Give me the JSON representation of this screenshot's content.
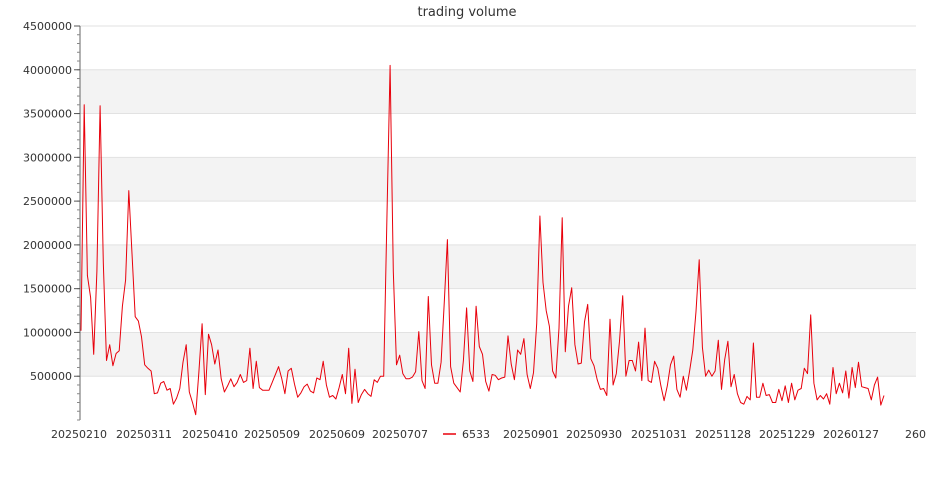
{
  "chart_data": {
    "type": "line",
    "title": "trading volume",
    "xlabel": "",
    "ylabel": "",
    "ylim": [
      0,
      4500000
    ],
    "y_ticks": [
      "500000",
      "1000000",
      "1500000",
      "2000000",
      "2500000",
      "3000000",
      "3500000",
      "4000000",
      "4500000"
    ],
    "x_tick_labels": [
      "20250210",
      "20250311",
      "20250410",
      "20250509",
      "20250609",
      "20250707",
      "20250901",
      "20250930",
      "20251031",
      "20251128",
      "20251229",
      "20260127",
      "260"
    ],
    "legend_placement": "bottom",
    "grid": "alternating horizontal bands",
    "series": [
      {
        "name": "6533",
        "color": "#e8000b",
        "values": [
          1020000,
          3600000,
          1650000,
          1400000,
          750000,
          1700000,
          3590000,
          1800000,
          680000,
          860000,
          620000,
          760000,
          790000,
          1300000,
          1600000,
          2620000,
          1900000,
          1180000,
          1130000,
          950000,
          630000,
          590000,
          560000,
          300000,
          310000,
          420000,
          440000,
          340000,
          360000,
          180000,
          250000,
          360000,
          660000,
          860000,
          320000,
          200000,
          60000,
          550000,
          1100000,
          290000,
          980000,
          860000,
          640000,
          800000,
          470000,
          320000,
          390000,
          470000,
          380000,
          430000,
          520000,
          430000,
          450000,
          820000,
          360000,
          670000,
          370000,
          340000,
          340000,
          340000,
          430000,
          520000,
          610000,
          470000,
          300000,
          560000,
          590000,
          410000,
          260000,
          310000,
          380000,
          410000,
          330000,
          310000,
          480000,
          460000,
          670000,
          400000,
          260000,
          280000,
          240000,
          370000,
          520000,
          300000,
          820000,
          190000,
          580000,
          200000,
          290000,
          350000,
          300000,
          270000,
          460000,
          430000,
          500000,
          500000,
          2300000,
          4050000,
          1700000,
          630000,
          740000,
          530000,
          470000,
          470000,
          490000,
          550000,
          1010000,
          450000,
          360000,
          1410000,
          630000,
          420000,
          420000,
          660000,
          1350000,
          2060000,
          610000,
          420000,
          370000,
          320000,
          680000,
          1280000,
          560000,
          440000,
          1300000,
          840000,
          750000,
          440000,
          330000,
          520000,
          510000,
          460000,
          480000,
          490000,
          960000,
          640000,
          460000,
          800000,
          750000,
          930000,
          520000,
          360000,
          540000,
          1100000,
          2330000,
          1570000,
          1250000,
          1070000,
          560000,
          480000,
          1050000,
          2310000,
          780000,
          1300000,
          1510000,
          860000,
          640000,
          650000,
          1120000,
          1320000,
          700000,
          620000,
          460000,
          350000,
          360000,
          280000,
          1150000,
          400000,
          530000,
          900000,
          1420000,
          500000,
          680000,
          680000,
          560000,
          890000,
          450000,
          1050000,
          450000,
          430000,
          670000,
          590000,
          390000,
          220000,
          390000,
          630000,
          730000,
          350000,
          260000,
          500000,
          340000,
          560000,
          800000,
          1240000,
          1830000,
          830000,
          500000,
          570000,
          500000,
          560000,
          910000,
          350000,
          690000,
          900000,
          380000,
          520000,
          300000,
          200000,
          180000,
          270000,
          230000,
          880000,
          260000,
          260000,
          420000,
          280000,
          290000,
          200000,
          200000,
          350000,
          220000,
          390000,
          200000,
          420000,
          230000,
          340000,
          360000,
          590000,
          530000,
          1200000,
          420000,
          230000,
          280000,
          240000,
          300000,
          180000,
          600000,
          300000,
          420000,
          310000,
          560000,
          250000,
          600000,
          370000,
          660000,
          380000,
          370000,
          360000,
          230000,
          400000,
          490000,
          170000,
          280000
        ]
      }
    ]
  }
}
